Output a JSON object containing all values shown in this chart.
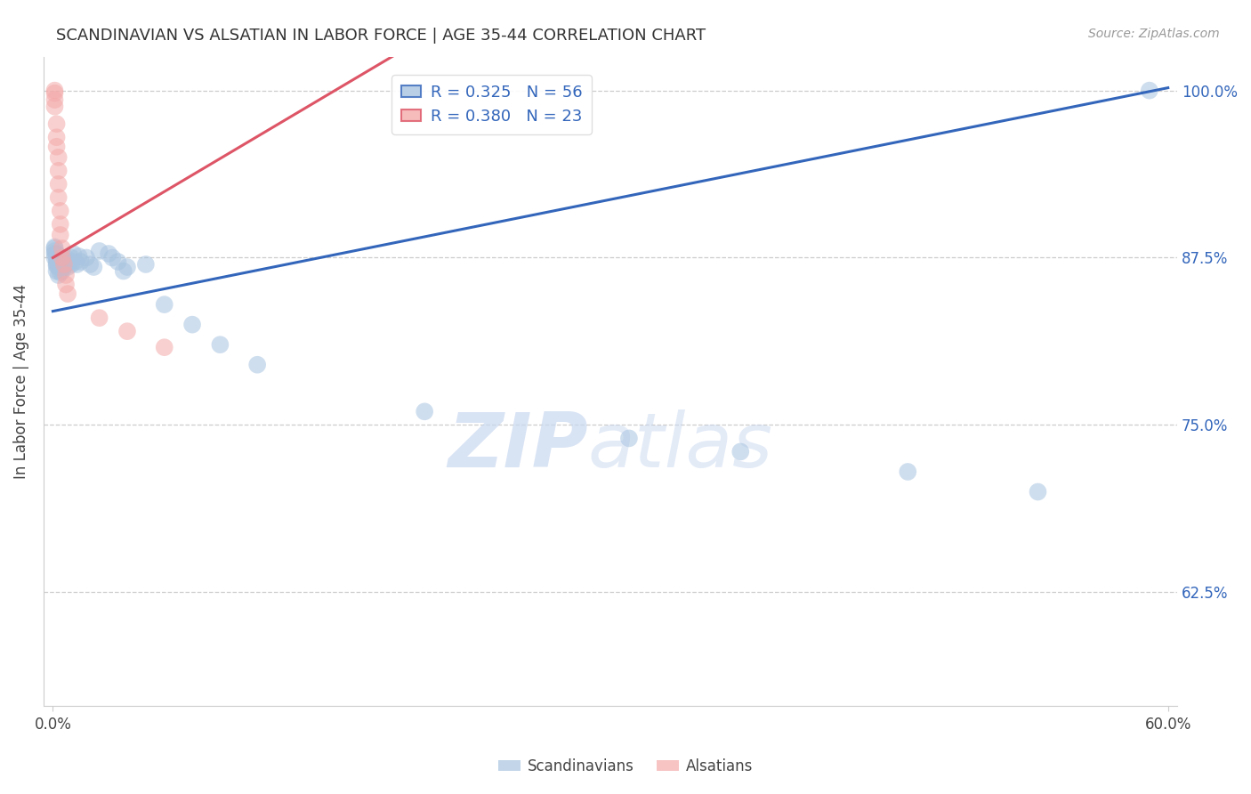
{
  "title": "SCANDINAVIAN VS ALSATIAN IN LABOR FORCE | AGE 35-44 CORRELATION CHART",
  "source": "Source: ZipAtlas.com",
  "ylabel": "In Labor Force | Age 35-44",
  "xlim": [
    -0.005,
    0.605
  ],
  "ylim": [
    0.54,
    1.025
  ],
  "ytick_values": [
    0.625,
    0.75,
    0.875,
    1.0
  ],
  "ytick_labels": [
    "62.5%",
    "75.0%",
    "87.5%",
    "100.0%"
  ],
  "blue_R": "0.325",
  "blue_N": "56",
  "pink_R": "0.380",
  "pink_N": "23",
  "blue_color": "#A8C4E0",
  "pink_color": "#F4AAAA",
  "blue_line_color": "#3366BB",
  "pink_line_color": "#DD5566",
  "watermark_zip": "ZIP",
  "watermark_atlas": "atlas",
  "blue_line_x0": 0.0,
  "blue_line_y0": 0.835,
  "blue_line_x1": 0.6,
  "blue_line_y1": 1.002,
  "pink_line_x0": 0.0,
  "pink_line_y0": 0.875,
  "pink_line_x1": 0.085,
  "pink_line_y1": 0.945,
  "blue_x": [
    0.001,
    0.001,
    0.001,
    0.001,
    0.001,
    0.002,
    0.002,
    0.002,
    0.002,
    0.002,
    0.002,
    0.003,
    0.003,
    0.003,
    0.003,
    0.003,
    0.004,
    0.004,
    0.004,
    0.004,
    0.005,
    0.005,
    0.005,
    0.006,
    0.006,
    0.007,
    0.007,
    0.008,
    0.009,
    0.01,
    0.01,
    0.011,
    0.012,
    0.013,
    0.014,
    0.015,
    0.018,
    0.02,
    0.022,
    0.025,
    0.03,
    0.032,
    0.035,
    0.038,
    0.04,
    0.05,
    0.06,
    0.075,
    0.09,
    0.11,
    0.2,
    0.31,
    0.37,
    0.46,
    0.53,
    0.59
  ],
  "blue_y": [
    0.88,
    0.882,
    0.878,
    0.875,
    0.883,
    0.875,
    0.878,
    0.87,
    0.872,
    0.865,
    0.869,
    0.871,
    0.875,
    0.868,
    0.862,
    0.876,
    0.87,
    0.864,
    0.872,
    0.868,
    0.87,
    0.875,
    0.865,
    0.872,
    0.868,
    0.875,
    0.87,
    0.868,
    0.872,
    0.875,
    0.87,
    0.878,
    0.872,
    0.87,
    0.876,
    0.872,
    0.875,
    0.87,
    0.868,
    0.88,
    0.878,
    0.875,
    0.872,
    0.865,
    0.868,
    0.87,
    0.84,
    0.825,
    0.81,
    0.795,
    0.76,
    0.74,
    0.73,
    0.715,
    0.7,
    1.0
  ],
  "pink_x": [
    0.001,
    0.001,
    0.001,
    0.001,
    0.002,
    0.002,
    0.002,
    0.003,
    0.003,
    0.003,
    0.003,
    0.004,
    0.004,
    0.004,
    0.005,
    0.005,
    0.006,
    0.007,
    0.007,
    0.008,
    0.025,
    0.04,
    0.06
  ],
  "pink_y": [
    1.0,
    0.998,
    0.993,
    0.988,
    0.975,
    0.965,
    0.958,
    0.95,
    0.94,
    0.93,
    0.92,
    0.91,
    0.9,
    0.892,
    0.882,
    0.875,
    0.87,
    0.862,
    0.855,
    0.848,
    0.83,
    0.82,
    0.808
  ]
}
